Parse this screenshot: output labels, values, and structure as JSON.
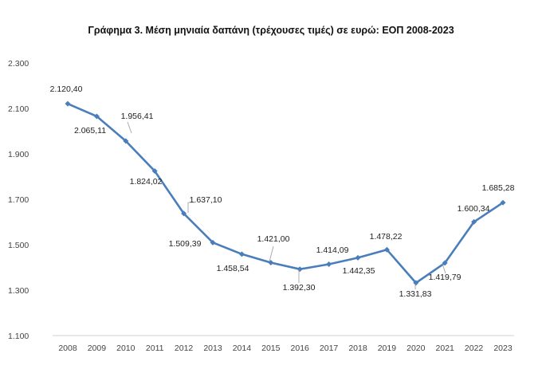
{
  "chart_data": {
    "type": "line",
    "title": "Γράφημα 3. Μέση μηνιαία δαπάνη (τρέχουσες τιμές) σε ευρώ: ΕΟΠ 2008-2023",
    "xlabel": "",
    "ylabel": "",
    "x": [
      "2008",
      "2009",
      "2010",
      "2011",
      "2012",
      "2013",
      "2014",
      "2015",
      "2016",
      "2017",
      "2018",
      "2019",
      "2020",
      "2021",
      "2022",
      "2023"
    ],
    "values": [
      2120.4,
      2065.11,
      1956.41,
      1824.02,
      1637.1,
      1509.39,
      1458.54,
      1421.0,
      1392.3,
      1414.09,
      1442.35,
      1478.22,
      1331.83,
      1419.79,
      1600.34,
      1685.28
    ],
    "data_labels": [
      "2.120,40",
      "2.065,11",
      "1.956,41",
      "1.824,02",
      "1.637,10",
      "1.509,39",
      "1.458,54",
      "1.421,00",
      "1.392,30",
      "1.414,09",
      "1.442,35",
      "1.478,22",
      "1.331,83",
      "1.419,79",
      "1.600,34",
      "1.685,28"
    ],
    "ylim": [
      1100,
      2300
    ],
    "yticks": [
      1100,
      1300,
      1500,
      1700,
      1900,
      2100,
      2300
    ],
    "ytick_labels": [
      "1.100",
      "1.300",
      "1.500",
      "1.700",
      "1.900",
      "2.100",
      "2.300"
    ],
    "grid": false,
    "legend": "none",
    "line_color": "#4a7ebb"
  }
}
